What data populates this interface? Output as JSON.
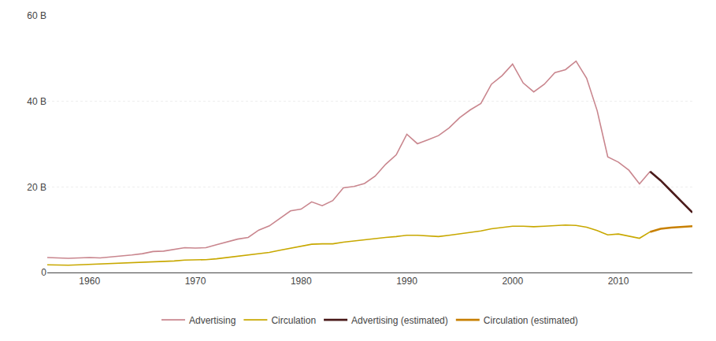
{
  "chart_data": {
    "type": "line",
    "series": [
      {
        "name": "Advertising",
        "color": "#c9868e",
        "x": [
          1956,
          1957,
          1958,
          1959,
          1960,
          1961,
          1962,
          1963,
          1964,
          1965,
          1966,
          1967,
          1968,
          1969,
          1970,
          1971,
          1972,
          1973,
          1974,
          1975,
          1976,
          1977,
          1978,
          1979,
          1980,
          1981,
          1982,
          1983,
          1984,
          1985,
          1986,
          1987,
          1988,
          1989,
          1990,
          1991,
          1992,
          1993,
          1994,
          1995,
          1996,
          1997,
          1998,
          1999,
          2000,
          2001,
          2002,
          2003,
          2004,
          2005,
          2006,
          2007,
          2008,
          2009,
          2010,
          2011,
          2012,
          2013
        ],
        "values": [
          3.5,
          3.4,
          3.3,
          3.4,
          3.5,
          3.4,
          3.6,
          3.8,
          4.1,
          4.4,
          4.9,
          5.0,
          5.4,
          5.8,
          5.7,
          5.8,
          6.5,
          7.2,
          7.8,
          8.2,
          9.9,
          10.9,
          12.7,
          14.4,
          14.8,
          16.5,
          15.6,
          16.8,
          19.8,
          20.1,
          20.8,
          22.5,
          25.3,
          27.5,
          32.3,
          30.1,
          31.0,
          32.0,
          33.8,
          36.2,
          38.0,
          39.5,
          44.0,
          46.0,
          48.7,
          44.3,
          42.2,
          44.0,
          46.7,
          47.4,
          49.4,
          45.4,
          37.8,
          27.0,
          25.8,
          23.9,
          20.7,
          23.6
        ]
      },
      {
        "name": "Circulation",
        "color": "#c8a800",
        "x": [
          1956,
          1957,
          1958,
          1959,
          1960,
          1961,
          1962,
          1963,
          1964,
          1965,
          1966,
          1967,
          1968,
          1969,
          1970,
          1971,
          1972,
          1973,
          1974,
          1975,
          1976,
          1977,
          1978,
          1979,
          1980,
          1981,
          1982,
          1983,
          1984,
          1985,
          1986,
          1987,
          1988,
          1989,
          1990,
          1991,
          1992,
          1993,
          1994,
          1995,
          1996,
          1997,
          1998,
          1999,
          2000,
          2001,
          2002,
          2003,
          2004,
          2005,
          2006,
          2007,
          2008,
          2009,
          2010,
          2011,
          2012,
          2013
        ],
        "values": [
          1.8,
          1.7,
          1.7,
          1.8,
          1.9,
          1.9,
          2.0,
          2.1,
          2.2,
          2.3,
          2.5,
          2.6,
          2.7,
          2.9,
          2.9,
          3.0,
          3.2,
          3.5,
          3.8,
          4.0,
          4.3,
          4.7,
          5.2,
          5.7,
          6.2,
          6.6,
          6.7,
          6.7,
          7.1,
          7.4,
          7.6,
          7.9,
          8.2,
          8.4,
          8.7,
          8.7,
          8.5,
          8.4,
          8.7,
          9.0,
          9.4,
          9.7,
          10.2,
          10.5,
          10.8,
          10.8,
          10.7,
          10.8,
          10.9,
          11.1,
          11.0,
          10.6,
          9.8,
          8.8,
          9.0,
          8.5,
          8.0,
          9.5
        ]
      },
      {
        "name": "Advertising (estimated)",
        "color": "#4a1a1a",
        "x": [
          2013,
          2014,
          2015,
          2016,
          2017
        ],
        "values": [
          23.6,
          21.5,
          19.0,
          16.5,
          14.0
        ]
      },
      {
        "name": "Circulation (estimated)",
        "color": "#c88000",
        "x": [
          2013,
          2014,
          2015,
          2016,
          2017
        ],
        "values": [
          9.5,
          10.2,
          10.5,
          10.7,
          10.8
        ]
      }
    ],
    "xlim": [
      1956,
      2017
    ],
    "xticks": [
      1960,
      1970,
      1980,
      1990,
      2000,
      2010
    ],
    "ylim": [
      0,
      60
    ],
    "yticks": [
      0,
      {
        "value": 20,
        "label": "20 B"
      },
      {
        "value": 40,
        "label": "40 B"
      },
      {
        "value": 60,
        "label": "60 B"
      }
    ],
    "grid": "y",
    "legend": "bottom"
  }
}
